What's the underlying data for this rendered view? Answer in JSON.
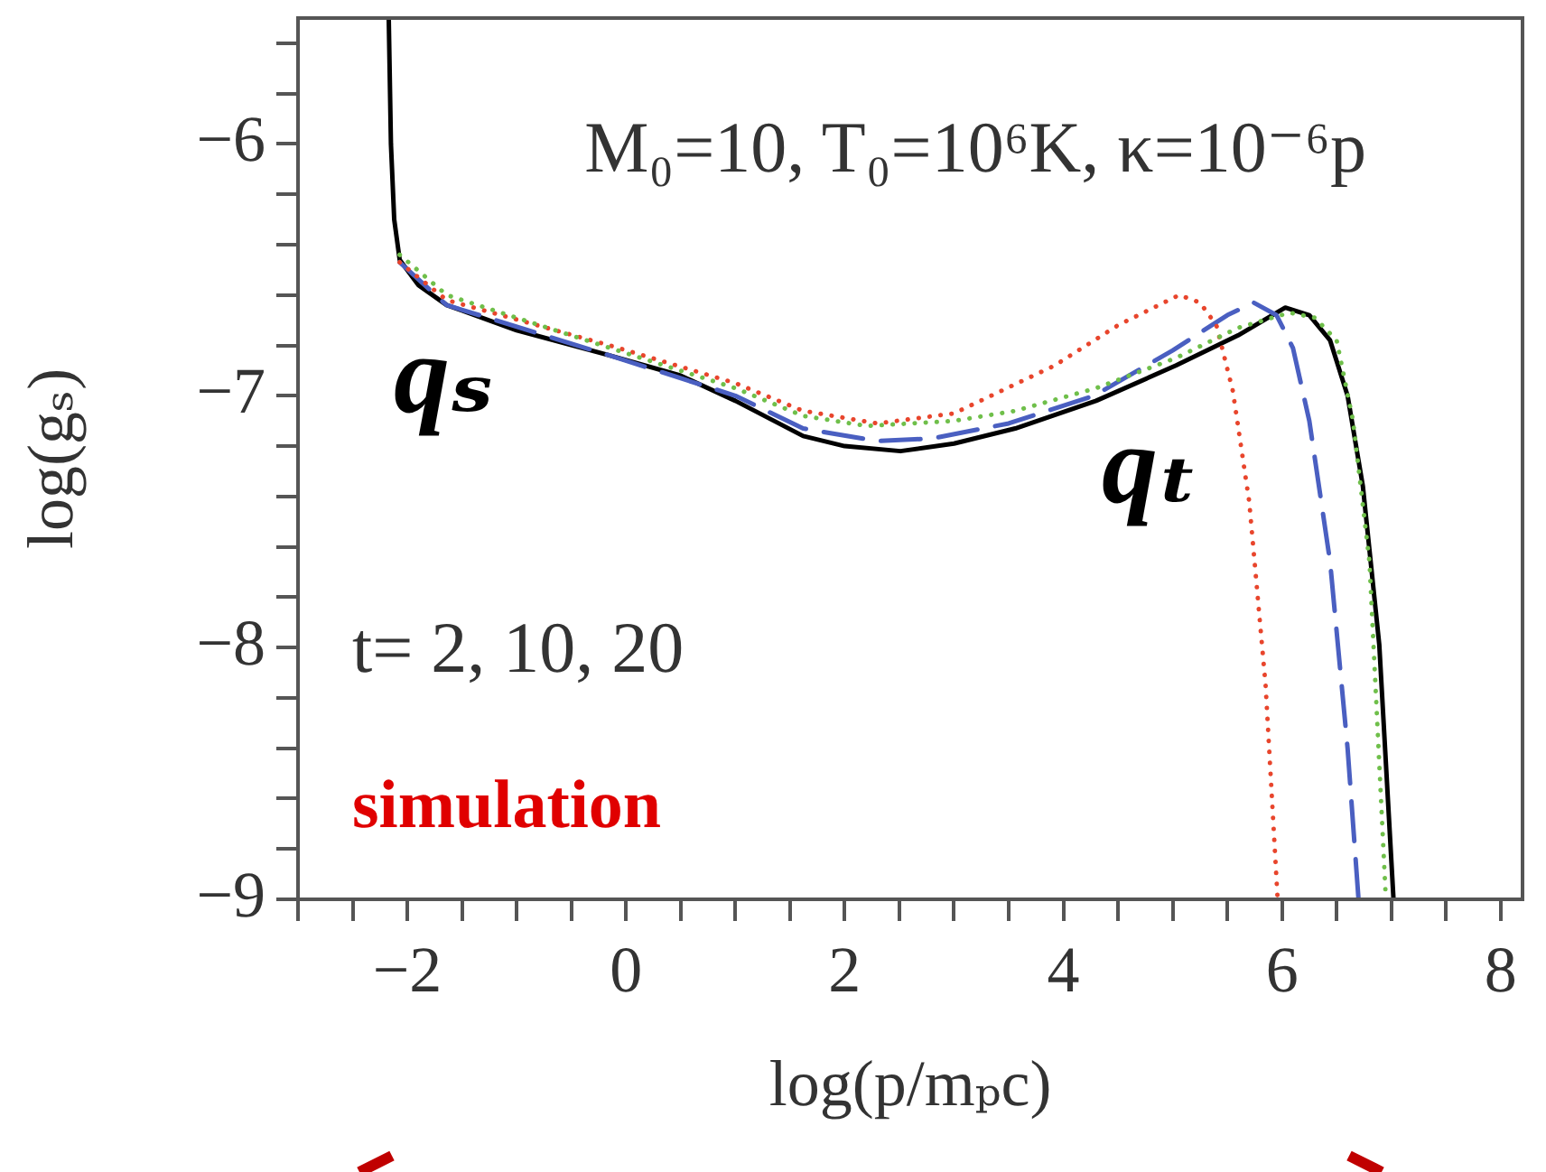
{
  "chart_data": {
    "type": "line",
    "xlabel": "log(p/mₚc)",
    "ylabel": "log(gₛ)",
    "xlim": [
      -3,
      8.2
    ],
    "ylim": [
      -9,
      -5.5
    ],
    "xticks": [
      {
        "value": -3,
        "label": null
      },
      {
        "value": -2.5,
        "label": null
      },
      {
        "value": -2,
        "label": "−2"
      },
      {
        "value": -1.5,
        "label": null
      },
      {
        "value": -1,
        "label": null
      },
      {
        "value": -0.5,
        "label": null
      },
      0,
      {
        "value": 0.5,
        "label": null
      },
      {
        "value": 1,
        "label": null
      },
      {
        "value": 1.5,
        "label": null
      },
      2,
      {
        "value": 2.5,
        "label": null
      },
      {
        "value": 3,
        "label": null
      },
      {
        "value": 3.5,
        "label": null
      },
      4,
      {
        "value": 4.5,
        "label": null
      },
      {
        "value": 5,
        "label": null
      },
      {
        "value": 5.5,
        "label": null
      },
      6,
      {
        "value": 6.5,
        "label": null
      },
      {
        "value": 7,
        "label": null
      },
      {
        "value": 7.5,
        "label": null
      },
      8
    ],
    "yticks": [
      {
        "value": -9,
        "label": "−9"
      },
      {
        "value": -8.8,
        "label": null
      },
      {
        "value": -8.6,
        "label": null
      },
      {
        "value": -8.4,
        "label": null
      },
      {
        "value": -8.2,
        "label": null
      },
      {
        "value": -8,
        "label": "−8"
      },
      {
        "value": -7.8,
        "label": null
      },
      {
        "value": -7.6,
        "label": null
      },
      {
        "value": -7.4,
        "label": null
      },
      {
        "value": -7.2,
        "label": null
      },
      {
        "value": -7,
        "label": "−7"
      },
      {
        "value": -6.8,
        "label": null
      },
      {
        "value": -6.6,
        "label": null
      },
      {
        "value": -6.4,
        "label": null
      },
      {
        "value": -6.2,
        "label": null
      },
      {
        "value": -6,
        "label": "−6"
      },
      {
        "value": -5.8,
        "label": null
      },
      {
        "value": -5.6,
        "label": null
      }
    ],
    "grid": false,
    "legend": false,
    "marker": "none",
    "annotations": [
      "M₀=10, T₀=10⁶K, κ=10⁻⁶p",
      "qₛ",
      "qₜ",
      "t= 2, 10, 20",
      "simulation"
    ],
    "series": [
      {
        "color": "#000000",
        "line_style": "solid",
        "x": [
          -2.17,
          -2.15,
          -2.12,
          -2.07,
          -1.9,
          -1.64,
          -1,
          -0.15,
          0.5,
          1,
          1.62,
          2,
          2.51,
          3,
          3.56,
          4.3,
          5.03,
          5.6,
          6.03,
          6.25,
          6.44,
          6.6,
          6.74,
          6.89,
          7.02
        ],
        "values": [
          -5.5,
          -6.0,
          -6.3,
          -6.46,
          -6.56,
          -6.64,
          -6.74,
          -6.84,
          -6.92,
          -7.02,
          -7.16,
          -7.2,
          -7.22,
          -7.19,
          -7.13,
          -7.02,
          -6.88,
          -6.76,
          -6.65,
          -6.68,
          -6.78,
          -7.0,
          -7.36,
          -7.99,
          -9
        ]
      },
      {
        "color": "#4a5fc1",
        "line_style": "dashed",
        "x": [
          -2.07,
          -1.64,
          -0.15,
          1,
          1.62,
          2.3,
          2.8,
          3.5,
          4.28,
          5,
          5.5,
          5.74,
          5.95,
          6.1,
          6.25,
          6.44,
          6.6,
          6.7
        ],
        "values": [
          -6.47,
          -6.64,
          -6.84,
          -7.0,
          -7.13,
          -7.18,
          -7.17,
          -7.11,
          -7.0,
          -6.82,
          -6.68,
          -6.63,
          -6.68,
          -6.81,
          -7.1,
          -7.66,
          -8.4,
          -9
        ]
      },
      {
        "color": "#e8452c",
        "line_style": "dotted",
        "x": [
          -2.07,
          -1.64,
          -0.15,
          1,
          1.62,
          2.3,
          3,
          3.92,
          4.5,
          5.06,
          5.25,
          5.4,
          5.55,
          5.7,
          5.85,
          5.96
        ],
        "values": [
          -6.47,
          -6.62,
          -6.8,
          -6.95,
          -7.06,
          -7.11,
          -7.07,
          -6.88,
          -6.72,
          -6.6,
          -6.63,
          -6.72,
          -6.98,
          -7.42,
          -8.15,
          -9
        ]
      },
      {
        "color": "#6fbf4a",
        "line_style": "dotted",
        "x": [
          -2.07,
          -1.64,
          -0.15,
          1,
          1.62,
          2.2,
          3,
          3.56,
          4.3,
          5.03,
          5.6,
          6.07,
          6.3,
          6.5,
          6.65,
          6.8,
          6.95
        ],
        "values": [
          -6.44,
          -6.6,
          -6.81,
          -6.97,
          -7.08,
          -7.12,
          -7.1,
          -7.06,
          -6.97,
          -6.85,
          -6.73,
          -6.67,
          -6.69,
          -6.78,
          -7.1,
          -7.66,
          -9
        ]
      }
    ]
  }
}
